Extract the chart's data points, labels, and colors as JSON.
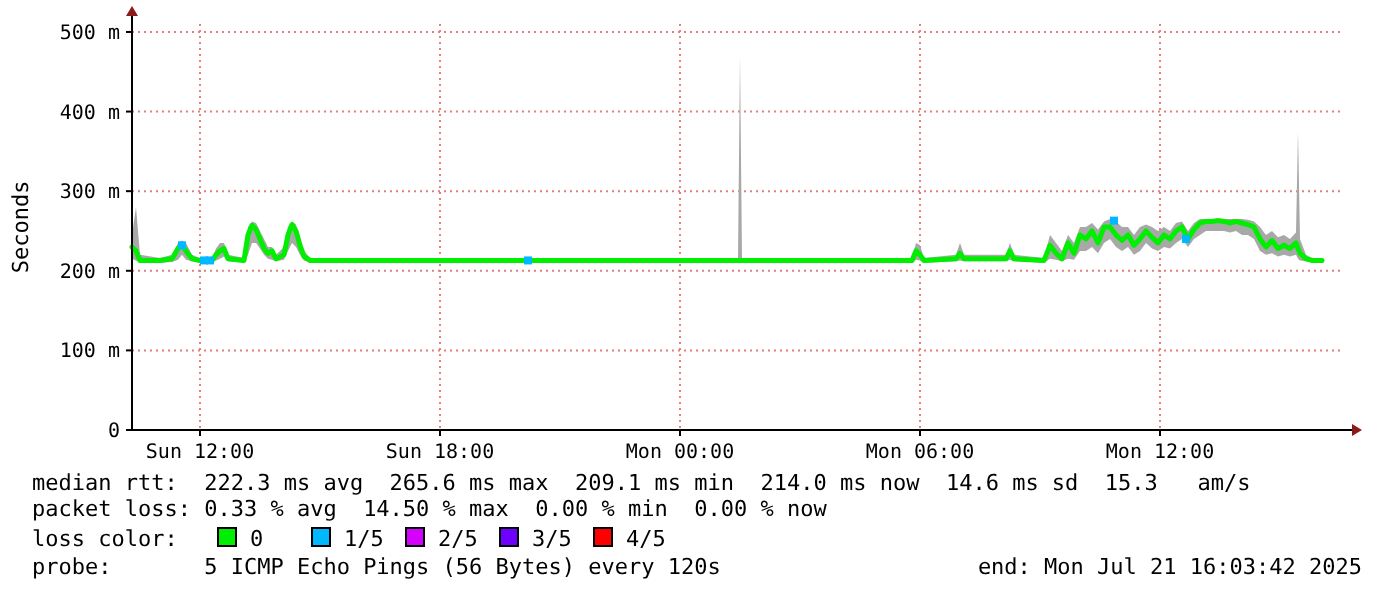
{
  "chart_data": {
    "type": "line",
    "ylabel": "Seconds",
    "legend_title": "loss color:",
    "legend": "bottom",
    "grid": true,
    "xlim": [
      "2025-07-20T10:18",
      "2025-07-21T16:30"
    ],
    "xticks": [
      {
        "value": "2025-07-20T12:00",
        "label": "Sun 12:00"
      },
      {
        "value": "2025-07-20T18:00",
        "label": "Sun 18:00"
      },
      {
        "value": "2025-07-21T00:00",
        "label": "Mon 00:00"
      },
      {
        "value": "2025-07-21T06:00",
        "label": "Mon 06:00"
      },
      {
        "value": "2025-07-21T12:00",
        "label": "Mon 12:00"
      }
    ],
    "ylim": [
      0,
      510
    ],
    "yticks": [
      0,
      {
        "value": 100,
        "label": "100 m"
      },
      {
        "value": 200,
        "label": "200 m"
      },
      {
        "value": 300,
        "label": "300 m"
      },
      {
        "value": 400,
        "label": "400 m"
      },
      {
        "value": 500,
        "label": "500 m"
      }
    ],
    "series": [
      {
        "name": "0",
        "color": "#00ee00",
        "x": [
          "2025-07-20T10:18",
          "2025-07-20T10:24",
          "2025-07-20T10:30",
          "2025-07-20T11:00",
          "2025-07-20T11:18",
          "2025-07-20T11:27",
          "2025-07-20T11:33",
          "2025-07-20T11:39",
          "2025-07-20T11:48",
          "2025-07-20T12:00",
          "2025-07-20T12:18",
          "2025-07-20T12:24",
          "2025-07-20T12:30",
          "2025-07-20T12:36",
          "2025-07-20T12:42",
          "2025-07-20T13:06",
          "2025-07-20T13:12",
          "2025-07-20T13:18",
          "2025-07-20T13:24",
          "2025-07-20T13:30",
          "2025-07-20T13:36",
          "2025-07-20T13:42",
          "2025-07-20T13:48",
          "2025-07-20T13:54",
          "2025-07-20T14:06",
          "2025-07-20T14:12",
          "2025-07-20T14:18",
          "2025-07-20T14:24",
          "2025-07-20T14:30",
          "2025-07-20T14:36",
          "2025-07-20T14:45",
          "2025-07-20T17:00",
          "2025-07-20T19:30",
          "2025-07-20T22:00",
          "2025-07-21T01:00",
          "2025-07-21T01:27",
          "2025-07-21T01:30",
          "2025-07-21T01:33",
          "2025-07-21T03:00",
          "2025-07-21T05:00",
          "2025-07-21T05:48",
          "2025-07-21T05:54",
          "2025-07-21T06:00",
          "2025-07-21T06:06",
          "2025-07-21T06:54",
          "2025-07-21T07:00",
          "2025-07-21T07:06",
          "2025-07-21T08:09",
          "2025-07-21T08:15",
          "2025-07-21T08:21",
          "2025-07-21T09:06",
          "2025-07-21T09:15",
          "2025-07-21T09:24",
          "2025-07-21T09:33",
          "2025-07-21T09:42",
          "2025-07-21T09:51",
          "2025-07-21T10:00",
          "2025-07-21T10:09",
          "2025-07-21T10:18",
          "2025-07-21T10:27",
          "2025-07-21T10:36",
          "2025-07-21T10:45",
          "2025-07-21T10:54",
          "2025-07-21T11:03",
          "2025-07-21T11:12",
          "2025-07-21T11:21",
          "2025-07-21T11:30",
          "2025-07-21T11:39",
          "2025-07-21T11:48",
          "2025-07-21T11:57",
          "2025-07-21T12:06",
          "2025-07-21T12:15",
          "2025-07-21T12:24",
          "2025-07-21T12:33",
          "2025-07-21T12:42",
          "2025-07-21T12:51",
          "2025-07-21T13:00",
          "2025-07-21T13:09",
          "2025-07-21T13:18",
          "2025-07-21T13:27",
          "2025-07-21T13:36",
          "2025-07-21T13:45",
          "2025-07-21T13:54",
          "2025-07-21T14:03",
          "2025-07-21T14:12",
          "2025-07-21T14:21",
          "2025-07-21T14:30",
          "2025-07-21T14:39",
          "2025-07-21T14:48",
          "2025-07-21T14:57",
          "2025-07-21T15:06",
          "2025-07-21T15:15",
          "2025-07-21T15:24",
          "2025-07-21T15:27",
          "2025-07-21T15:30",
          "2025-07-21T15:39",
          "2025-07-21T15:48",
          "2025-07-21T16:03"
        ],
        "values": [
          230,
          225,
          213,
          213,
          215,
          228,
          232,
          225,
          215,
          213,
          213,
          220,
          225,
          228,
          215,
          213,
          245,
          257,
          252,
          240,
          228,
          222,
          225,
          215,
          220,
          245,
          258,
          250,
          232,
          218,
          213,
          213,
          213,
          213,
          213,
          213,
          213,
          213,
          213,
          213,
          213,
          225,
          220,
          213,
          215,
          222,
          215,
          215,
          225,
          215,
          213,
          232,
          222,
          215,
          235,
          222,
          245,
          240,
          250,
          235,
          255,
          255,
          245,
          238,
          245,
          232,
          240,
          250,
          242,
          235,
          245,
          240,
          250,
          255,
          240,
          252,
          260,
          262,
          262,
          263,
          262,
          260,
          262,
          260,
          258,
          255,
          240,
          230,
          238,
          228,
          232,
          228,
          235,
          228,
          222,
          215,
          213,
          213
        ],
        "lower": [
          215,
          213,
          210,
          210,
          211,
          214,
          220,
          214,
          212,
          210,
          210,
          213,
          215,
          218,
          212,
          210,
          220,
          235,
          235,
          228,
          220,
          215,
          214,
          212,
          214,
          225,
          235,
          230,
          220,
          213,
          210,
          210,
          210,
          210,
          210,
          210,
          210,
          210,
          210,
          210,
          210,
          214,
          213,
          210,
          212,
          213,
          212,
          212,
          214,
          212,
          210,
          215,
          214,
          212,
          215,
          214,
          225,
          225,
          230,
          222,
          235,
          240,
          230,
          225,
          230,
          220,
          225,
          235,
          228,
          225,
          230,
          228,
          235,
          240,
          230,
          240,
          245,
          250,
          250,
          250,
          250,
          248,
          250,
          245,
          245,
          240,
          225,
          220,
          222,
          218,
          220,
          218,
          220,
          215,
          213,
          212,
          210,
          210
        ],
        "upper": [
          245,
          280,
          220,
          216,
          220,
          235,
          238,
          235,
          220,
          216,
          216,
          228,
          235,
          235,
          220,
          216,
          255,
          262,
          260,
          250,
          240,
          230,
          230,
          220,
          230,
          255,
          262,
          258,
          240,
          225,
          216,
          216,
          216,
          216,
          216,
          216,
          470,
          216,
          216,
          216,
          216,
          235,
          232,
          216,
          220,
          235,
          220,
          220,
          235,
          220,
          216,
          245,
          235,
          225,
          245,
          235,
          255,
          255,
          260,
          252,
          262,
          265,
          262,
          255,
          255,
          245,
          255,
          258,
          255,
          250,
          255,
          250,
          260,
          262,
          250,
          260,
          265,
          265,
          265,
          266,
          265,
          265,
          265,
          265,
          264,
          262,
          255,
          245,
          250,
          242,
          245,
          240,
          248,
          375,
          240,
          220,
          216,
          216
        ]
      },
      {
        "name": "1/5",
        "type": "scatter",
        "marker": "square",
        "color": "#00b8ff",
        "x": [
          "2025-07-20T11:33",
          "2025-07-20T12:06",
          "2025-07-20T12:15",
          "2025-07-20T20:12",
          "2025-07-21T10:51",
          "2025-07-21T12:39"
        ],
        "values": [
          232,
          213,
          213,
          213,
          263,
          240
        ]
      },
      {
        "name": "2/5",
        "type": "scatter",
        "marker": "square",
        "color": "#d600ff"
      },
      {
        "name": "3/5",
        "type": "scatter",
        "marker": "square",
        "color": "#6e00ff"
      },
      {
        "name": "4/5",
        "type": "scatter",
        "marker": "square",
        "color": "#ff0000"
      }
    ],
    "annotations": [
      "median rtt:  222.3 ms avg  265.6 ms max  209.1 ms min  214.0 ms now  14.6 ms sd  15.3   am/s",
      "packet loss: 0.33 % avg  14.50 % max  0.00 % min  0.00 % now",
      "probe:       5 ICMP Echo Pings (56 Bytes) every 120s",
      "end: Mon Jul 21 16:03:42 2025"
    ]
  }
}
